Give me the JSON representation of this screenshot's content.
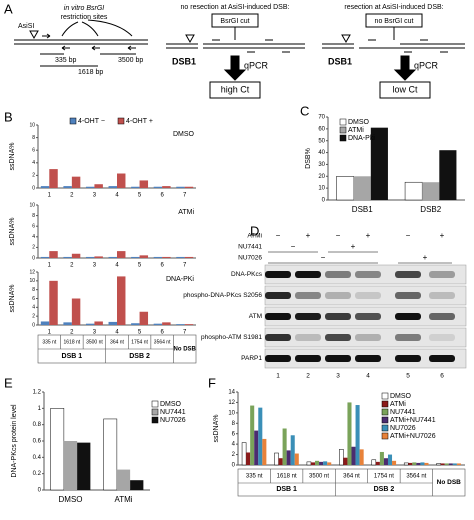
{
  "diagram": {
    "panel": "A",
    "site": "AsiSI",
    "note_line1": "in vitro BsrGI",
    "note_line2": "restriction sites",
    "distances": [
      "335 bp",
      "1618 bp",
      "3500 bp"
    ],
    "scheme_no_resection": {
      "title": "no resection at AsiSI-induced DSB:",
      "cut": "BsrGI cut",
      "dsb": "DSB1",
      "method": "qPCR",
      "result": "high Ct"
    },
    "scheme_resection": {
      "title": "resection at AsiSI-induced DSB:",
      "cut": "no BsrGI cut",
      "dsb": "DSB1",
      "method": "qPCR",
      "result": "low Ct"
    }
  },
  "chart_data": [
    {
      "type": "bar",
      "panel": "B",
      "title": "DMSO",
      "ylabel": "ssDNA%",
      "categories": [
        "1",
        "2",
        "3",
        "4",
        "5",
        "6",
        "7"
      ],
      "ylim": [
        0,
        10
      ],
      "yticks": [
        0,
        2,
        4,
        6,
        8,
        10
      ],
      "series": [
        {
          "name": "4-OHT −",
          "color": "#4f81bd",
          "values": [
            0.3,
            0.3,
            0.2,
            0.3,
            0.2,
            0.2,
            0.2
          ]
        },
        {
          "name": "4-OHT +",
          "color": "#c0504d",
          "values": [
            3.0,
            1.8,
            0.6,
            2.3,
            1.2,
            0.3,
            0.2
          ]
        }
      ]
    },
    {
      "type": "bar",
      "title": "ATMi",
      "ylabel": "ssDNA%",
      "categories": [
        "1",
        "2",
        "3",
        "4",
        "5",
        "6",
        "7"
      ],
      "ylim": [
        0,
        10
      ],
      "yticks": [
        0,
        2,
        4,
        6,
        8,
        10
      ],
      "series": [
        {
          "color": "#4f81bd",
          "values": [
            0.2,
            0.2,
            0.2,
            0.2,
            0.2,
            0.2,
            0.2
          ]
        },
        {
          "color": "#c0504d",
          "values": [
            1.3,
            0.8,
            0.3,
            1.3,
            0.5,
            0.2,
            0.2
          ]
        }
      ]
    },
    {
      "type": "bar",
      "title": "DNA-PKi",
      "ylabel": "ssDNA%",
      "categories": [
        "1",
        "2",
        "3",
        "4",
        "5",
        "6",
        "7"
      ],
      "ylim": [
        0,
        12
      ],
      "yticks": [
        0,
        2,
        4,
        6,
        8,
        10,
        12
      ],
      "segment_labels": [
        "335 nt",
        "1618 nt",
        "3500 nt",
        "364 nt",
        "1754 nt",
        "3564 nt",
        "No DSB"
      ],
      "groups": [
        "DSB 1",
        "DSB 2"
      ],
      "series": [
        {
          "color": "#4f81bd",
          "values": [
            0.8,
            0.6,
            0.3,
            0.7,
            0.4,
            0.3,
            0.2
          ]
        },
        {
          "color": "#c0504d",
          "values": [
            10.0,
            6.0,
            0.8,
            11.0,
            3.0,
            0.6,
            0.2
          ]
        }
      ]
    },
    {
      "type": "bar",
      "panel": "C",
      "ylabel": "DSB%",
      "categories": [
        "DSB1",
        "DSB2"
      ],
      "ylim": [
        0,
        70
      ],
      "yticks": [
        0,
        10,
        20,
        30,
        40,
        50,
        60,
        70
      ],
      "series": [
        {
          "name": "DMSO",
          "color": "#ffffff",
          "values": [
            20,
            15
          ]
        },
        {
          "name": "ATMi",
          "color": "#a6a6a6",
          "values": [
            20,
            15
          ]
        },
        {
          "name": "DNA-Pki",
          "color": "#111111",
          "values": [
            61,
            42
          ]
        }
      ]
    },
    {
      "type": "bar",
      "panel": "E",
      "ylabel": "DNA-PKcs protein level",
      "categories": [
        "DMSO",
        "ATMi"
      ],
      "ylim": [
        0,
        1.2
      ],
      "yticks": [
        0,
        0.2,
        0.4,
        0.6,
        0.8,
        1,
        1.2
      ],
      "series": [
        {
          "name": "DMSO",
          "color": "#ffffff",
          "values": [
            1.0,
            0.87
          ]
        },
        {
          "name": "NU7441",
          "color": "#a6a6a6",
          "values": [
            0.6,
            0.25
          ]
        },
        {
          "name": "NU7026",
          "color": "#111111",
          "values": [
            0.58,
            0.12
          ]
        }
      ]
    },
    {
      "type": "bar",
      "panel": "F",
      "ylabel": "ssDNA%",
      "categories": [
        "335 nt",
        "1618 nt",
        "3500 nt",
        "364 nt",
        "1754 nt",
        "3564 nt",
        "No DSB"
      ],
      "groups": [
        "DSB 1",
        "DSB 2"
      ],
      "ylim": [
        0,
        14
      ],
      "yticks": [
        0,
        2,
        4,
        6,
        8,
        10,
        12,
        14
      ],
      "series": [
        {
          "name": "DMSO",
          "color": "#ffffff",
          "values": [
            4.3,
            2.3,
            0.6,
            3.0,
            1.0,
            0.4,
            0.3
          ]
        },
        {
          "name": "ATMi",
          "color": "#8b1a1a",
          "values": [
            2.4,
            1.3,
            0.5,
            1.4,
            0.6,
            0.4,
            0.3
          ]
        },
        {
          "name": "NU7441",
          "color": "#7aa35a",
          "values": [
            11.4,
            7.0,
            0.8,
            12.0,
            2.5,
            0.5,
            0.3
          ]
        },
        {
          "name": "ATMi+NU7441",
          "color": "#4b2c6f",
          "values": [
            6.6,
            2.8,
            0.6,
            3.5,
            1.3,
            0.4,
            0.3
          ]
        },
        {
          "name": "NU7026",
          "color": "#3a8fb7",
          "values": [
            11.0,
            5.7,
            0.7,
            11.5,
            2.0,
            0.5,
            0.3
          ]
        },
        {
          "name": "ATMi+NU7026",
          "color": "#e8823a",
          "values": [
            5.0,
            2.2,
            0.5,
            3.0,
            0.8,
            0.4,
            0.3
          ]
        }
      ]
    }
  ],
  "blot": {
    "panel": "D",
    "treatments": [
      {
        "name": "ATMi",
        "cells": [
          "−",
          "+",
          "−",
          "+",
          "−",
          "+"
        ]
      },
      {
        "name": "NU7441",
        "cells": [
          "−",
          "+"
        ]
      },
      {
        "name": "NU7026",
        "cells": [
          "−",
          "+"
        ]
      }
    ],
    "proteins": [
      "DNA-PKcs",
      "phospho-DNA-PKcs S2056",
      "ATM",
      "phospho-ATM S1981",
      "PARP1"
    ],
    "lanes": [
      "1",
      "2",
      "3",
      "4",
      "5",
      "6"
    ]
  }
}
